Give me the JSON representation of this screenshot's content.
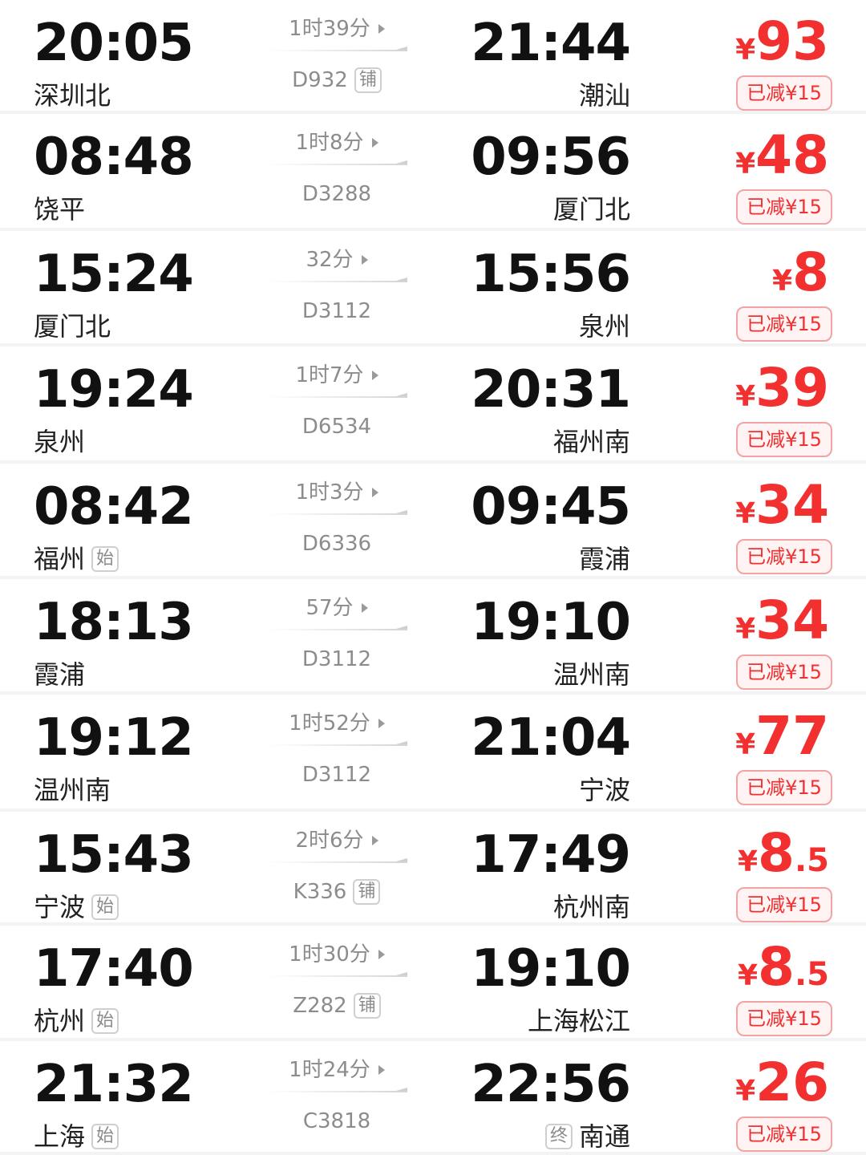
{
  "trips": [
    {
      "dep_time": "20:05",
      "dep_station": "深圳北",
      "dep_tag": "",
      "duration": "1时39分",
      "train": "D932",
      "train_tag": "铺",
      "arr_time": "21:44",
      "arr_station": "潮汕",
      "arr_tag": "",
      "price_int": "93",
      "price_dec": "",
      "discount": "已减¥15"
    },
    {
      "dep_time": "08:48",
      "dep_station": "饶平",
      "dep_tag": "",
      "duration": "1时8分",
      "train": "D3288",
      "train_tag": "",
      "arr_time": "09:56",
      "arr_station": "厦门北",
      "arr_tag": "",
      "price_int": "48",
      "price_dec": "",
      "discount": "已减¥15"
    },
    {
      "dep_time": "15:24",
      "dep_station": "厦门北",
      "dep_tag": "",
      "duration": "32分",
      "train": "D3112",
      "train_tag": "",
      "arr_time": "15:56",
      "arr_station": "泉州",
      "arr_tag": "",
      "price_int": "8",
      "price_dec": "",
      "discount": "已减¥15"
    },
    {
      "dep_time": "19:24",
      "dep_station": "泉州",
      "dep_tag": "",
      "duration": "1时7分",
      "train": "D6534",
      "train_tag": "",
      "arr_time": "20:31",
      "arr_station": "福州南",
      "arr_tag": "",
      "price_int": "39",
      "price_dec": "",
      "discount": "已减¥15"
    },
    {
      "dep_time": "08:42",
      "dep_station": "福州",
      "dep_tag": "始",
      "duration": "1时3分",
      "train": "D6336",
      "train_tag": "",
      "arr_time": "09:45",
      "arr_station": "霞浦",
      "arr_tag": "",
      "price_int": "34",
      "price_dec": "",
      "discount": "已减¥15"
    },
    {
      "dep_time": "18:13",
      "dep_station": "霞浦",
      "dep_tag": "",
      "duration": "57分",
      "train": "D3112",
      "train_tag": "",
      "arr_time": "19:10",
      "arr_station": "温州南",
      "arr_tag": "",
      "price_int": "34",
      "price_dec": "",
      "discount": "已减¥15"
    },
    {
      "dep_time": "19:12",
      "dep_station": "温州南",
      "dep_tag": "",
      "duration": "1时52分",
      "train": "D3112",
      "train_tag": "",
      "arr_time": "21:04",
      "arr_station": "宁波",
      "arr_tag": "",
      "price_int": "77",
      "price_dec": "",
      "discount": "已减¥15"
    },
    {
      "dep_time": "15:43",
      "dep_station": "宁波",
      "dep_tag": "始",
      "duration": "2时6分",
      "train": "K336",
      "train_tag": "铺",
      "arr_time": "17:49",
      "arr_station": "杭州南",
      "arr_tag": "",
      "price_int": "8",
      "price_dec": ".5",
      "discount": "已减¥15"
    },
    {
      "dep_time": "17:40",
      "dep_station": "杭州",
      "dep_tag": "始",
      "duration": "1时30分",
      "train": "Z282",
      "train_tag": "铺",
      "arr_time": "19:10",
      "arr_station": "上海松江",
      "arr_tag": "",
      "price_int": "8",
      "price_dec": ".5",
      "discount": "已减¥15"
    },
    {
      "dep_time": "21:32",
      "dep_station": "上海",
      "dep_tag": "始",
      "duration": "1时24分",
      "train": "C3818",
      "train_tag": "",
      "arr_time": "22:56",
      "arr_station": "南通",
      "arr_tag": "终",
      "price_int": "26",
      "price_dec": "",
      "discount": "已减¥15"
    }
  ],
  "currency_symbol": "¥",
  "colors": {
    "price": "#f23030",
    "discount_bg": "#fff3f3",
    "discount_border": "#f2a3a3",
    "muted": "#8c8c8c"
  },
  "icons": {
    "direction": "triangle-right-icon",
    "line": "arrow-line-icon"
  }
}
